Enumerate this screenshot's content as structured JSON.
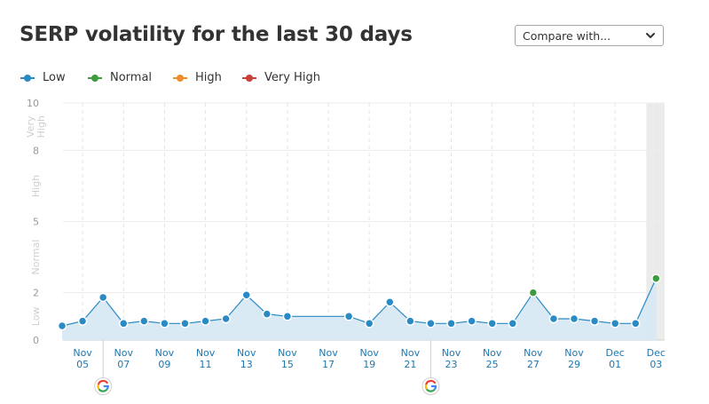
{
  "header": {
    "title": "SERP volatility for the last 30 days",
    "compare_label": "Compare with..."
  },
  "legend": [
    {
      "label": "Low",
      "color": "#2a8ac4"
    },
    {
      "label": "Normal",
      "color": "#3f9b3f"
    },
    {
      "label": "High",
      "color": "#ee8d2d"
    },
    {
      "label": "Very High",
      "color": "#c9403a"
    }
  ],
  "chart_data": {
    "type": "area",
    "ylim": [
      0,
      10
    ],
    "yticks": [
      "0",
      "2",
      "5",
      "8",
      "10"
    ],
    "band_labels": [
      "Low",
      "Normal",
      "High",
      "Very High"
    ],
    "x_tick_labels": [
      [
        "Nov",
        "05"
      ],
      [
        "Nov",
        "07"
      ],
      [
        "Nov",
        "09"
      ],
      [
        "Nov",
        "11"
      ],
      [
        "Nov",
        "13"
      ],
      [
        "Nov",
        "15"
      ],
      [
        "Nov",
        "17"
      ],
      [
        "Nov",
        "19"
      ],
      [
        "Nov",
        "21"
      ],
      [
        "Nov",
        "23"
      ],
      [
        "Nov",
        "25"
      ],
      [
        "Nov",
        "27"
      ],
      [
        "Nov",
        "29"
      ],
      [
        "Dec",
        "01"
      ],
      [
        "Dec",
        "03"
      ]
    ],
    "series": [
      {
        "values": [
          {
            "date": "Nov 04",
            "y": 0.6
          },
          {
            "date": "Nov 05",
            "y": 0.8
          },
          {
            "date": "Nov 06",
            "y": 1.8
          },
          {
            "date": "Nov 07",
            "y": 0.7
          },
          {
            "date": "Nov 08",
            "y": 0.8
          },
          {
            "date": "Nov 09",
            "y": 0.7
          },
          {
            "date": "Nov 10",
            "y": 0.7
          },
          {
            "date": "Nov 11",
            "y": 0.8
          },
          {
            "date": "Nov 12",
            "y": 0.9
          },
          {
            "date": "Nov 13",
            "y": 1.9
          },
          {
            "date": "Nov 14",
            "y": 1.1
          },
          {
            "date": "Nov 15",
            "y": 1.0
          },
          {
            "date": "Nov 18",
            "y": 1.0
          },
          {
            "date": "Nov 19",
            "y": 0.7
          },
          {
            "date": "Nov 20",
            "y": 1.6
          },
          {
            "date": "Nov 21",
            "y": 0.8
          },
          {
            "date": "Nov 22",
            "y": 0.7
          },
          {
            "date": "Nov 23",
            "y": 0.7
          },
          {
            "date": "Nov 24",
            "y": 0.8
          },
          {
            "date": "Nov 25",
            "y": 0.7
          },
          {
            "date": "Nov 26",
            "y": 0.7
          },
          {
            "date": "Nov 27",
            "y": 2.0
          },
          {
            "date": "Nov 28",
            "y": 0.9
          },
          {
            "date": "Nov 29",
            "y": 0.9
          },
          {
            "date": "Nov 30",
            "y": 0.8
          },
          {
            "date": "Dec 01",
            "y": 0.7
          },
          {
            "date": "Dec 02",
            "y": 0.7
          },
          {
            "date": "Dec 03",
            "y": 2.6
          }
        ]
      }
    ],
    "google_update_dates": [
      "Nov 06",
      "Nov 22"
    ],
    "highlighted_date": "Dec 03",
    "grid": true,
    "legend_position": "top-left"
  }
}
